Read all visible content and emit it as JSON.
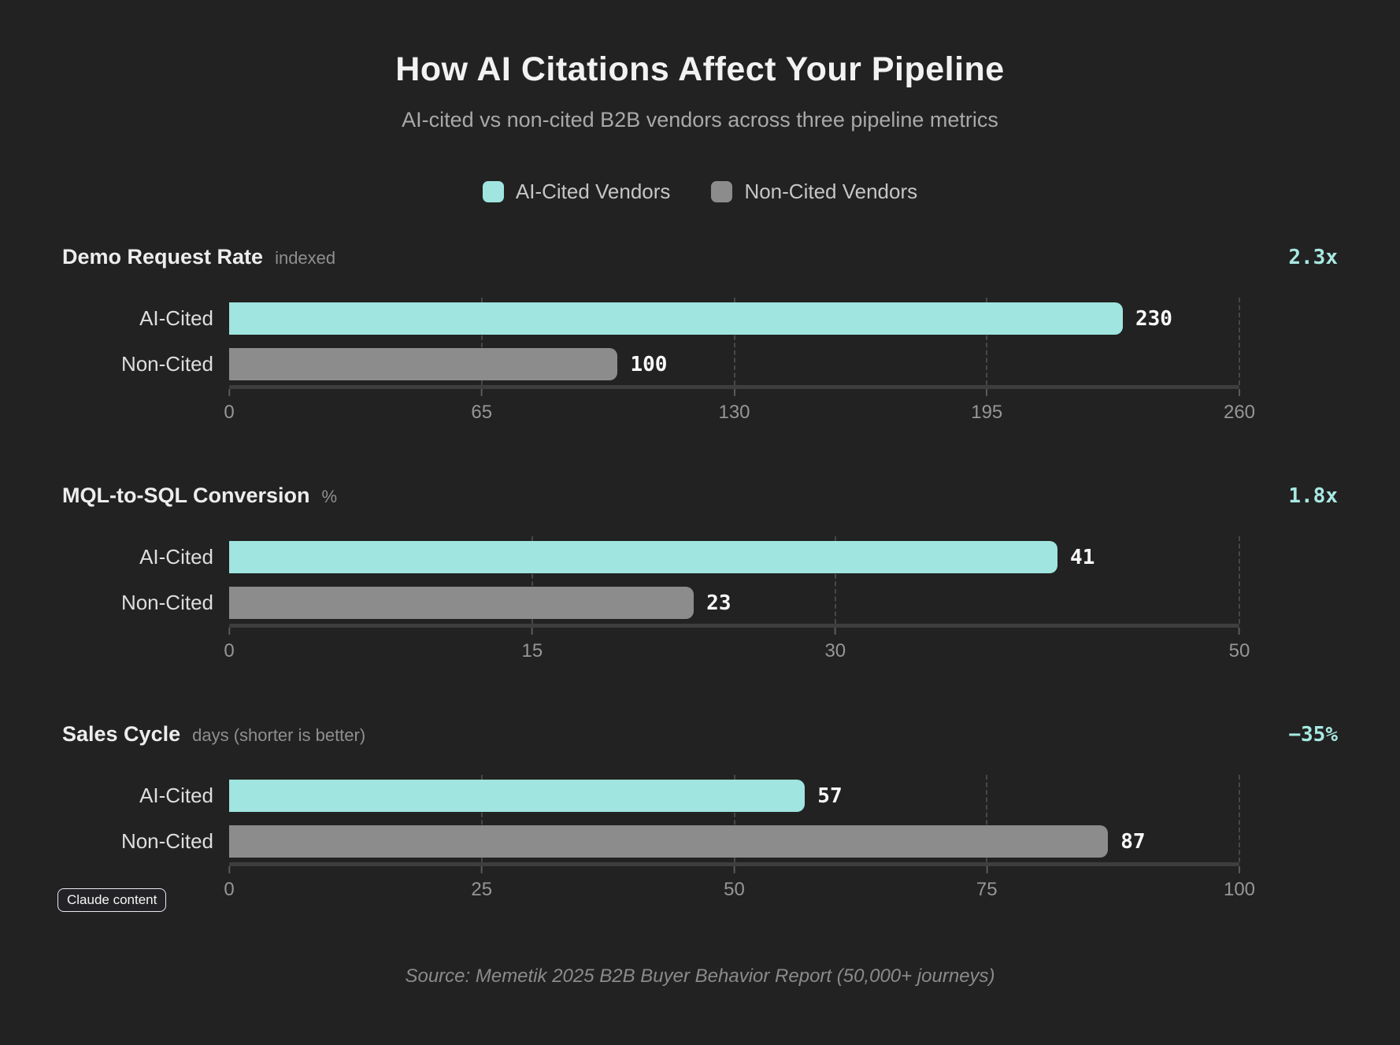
{
  "title": "How AI Citations Affect Your Pipeline",
  "subtitle": "AI-cited vs non-cited B2B vendors across three pipeline metrics",
  "legend": {
    "items": [
      {
        "label": "AI-Cited Vendors",
        "color": "#A0E5DF"
      },
      {
        "label": "Non-Cited Vendors",
        "color": "#8C8C8C"
      }
    ]
  },
  "colors": {
    "background": "#222222",
    "accent_teal": "#A0E5DF",
    "neutral_gray": "#8C8C8C",
    "delta_text": "#A8E9E2",
    "title_text": "#F2F2F2",
    "muted_text": "#969696"
  },
  "chart_data": [
    {
      "type": "bar",
      "orientation": "horizontal",
      "title": "Demo Request Rate",
      "unit": "indexed",
      "delta": "2.3x",
      "categories": [
        "AI-Cited",
        "Non-Cited"
      ],
      "values": [
        230,
        100
      ],
      "xlim": [
        0,
        260
      ],
      "xticks": [
        0,
        65,
        130,
        195,
        260
      ],
      "grid": "dashed-vertical",
      "series_colors": [
        "#A0E5DF",
        "#8C8C8C"
      ]
    },
    {
      "type": "bar",
      "orientation": "horizontal",
      "title": "MQL-to-SQL Conversion",
      "unit": "%",
      "delta": "1.8x",
      "categories": [
        "AI-Cited",
        "Non-Cited"
      ],
      "values": [
        41,
        23
      ],
      "xlim": [
        0,
        50
      ],
      "xticks": [
        0,
        15,
        30,
        50
      ],
      "grid": "dashed-vertical",
      "series_colors": [
        "#A0E5DF",
        "#8C8C8C"
      ]
    },
    {
      "type": "bar",
      "orientation": "horizontal",
      "title": "Sales Cycle",
      "unit": "days (shorter is better)",
      "delta": "−35%",
      "categories": [
        "AI-Cited",
        "Non-Cited"
      ],
      "values": [
        57,
        87
      ],
      "xlim": [
        0,
        100
      ],
      "xticks": [
        0,
        25,
        50,
        75,
        100
      ],
      "grid": "dashed-vertical",
      "series_colors": [
        "#A0E5DF",
        "#8C8C8C"
      ]
    }
  ],
  "badge": "Claude content",
  "source": "Source: Memetik 2025 B2B Buyer Behavior Report (50,000+ journeys)"
}
